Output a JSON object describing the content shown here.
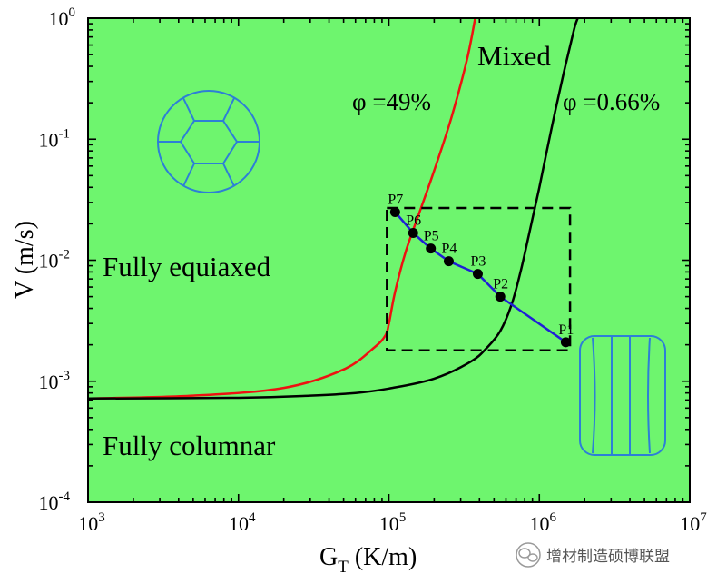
{
  "chart_data": {
    "type": "area",
    "xlabel_main": "G",
    "xlabel_sub": "T",
    "xlabel_unit": " (K/m)",
    "ylabel": "V (m/s)",
    "x_scale": "log",
    "y_scale": "log",
    "xlim": [
      1000,
      10000000
    ],
    "ylim": [
      0.0001,
      1
    ],
    "x_ticks": [
      {
        "value": 1000,
        "base": "10",
        "exp": "3"
      },
      {
        "value": 10000,
        "base": "10",
        "exp": "4"
      },
      {
        "value": 100000,
        "base": "10",
        "exp": "5"
      },
      {
        "value": 1000000,
        "base": "10",
        "exp": "6"
      },
      {
        "value": 10000000,
        "base": "10",
        "exp": "7"
      }
    ],
    "y_ticks": [
      {
        "value": 0.0001,
        "base": "10",
        "exp": "-4"
      },
      {
        "value": 0.001,
        "base": "10",
        "exp": "-3"
      },
      {
        "value": 0.01,
        "base": "10",
        "exp": "-2"
      },
      {
        "value": 0.1,
        "base": "10",
        "exp": "-1"
      },
      {
        "value": 1,
        "base": "10",
        "exp": "0"
      }
    ],
    "regions": [
      {
        "label": "Fully equiaxed",
        "color": "#ffcccc"
      },
      {
        "label": "Mixed",
        "color": "#c896fa"
      },
      {
        "label": "Fully columnar",
        "color": "#6ef56e"
      }
    ],
    "boundaries": [
      {
        "label": "φ =49%",
        "color": "#ee1111",
        "points": [
          [
            1000,
            0.00072
          ],
          [
            5000,
            0.00076
          ],
          [
            20000,
            0.00088
          ],
          [
            50000,
            0.00125
          ],
          [
            80000,
            0.0019
          ],
          [
            95000,
            0.0024
          ],
          [
            100000,
            0.003
          ],
          [
            110000,
            0.0055
          ],
          [
            130000,
            0.012
          ],
          [
            160000,
            0.025
          ],
          [
            200000,
            0.055
          ],
          [
            260000,
            0.15
          ],
          [
            330000,
            0.45
          ],
          [
            375000,
            1.0
          ]
        ]
      },
      {
        "label": "φ =0.66%",
        "color": "#000000",
        "points": [
          [
            1000,
            0.00072
          ],
          [
            10000,
            0.00073
          ],
          [
            30000,
            0.00076
          ],
          [
            60000,
            0.0008
          ],
          [
            100000,
            0.00087
          ],
          [
            200000,
            0.00105
          ],
          [
            350000,
            0.00145
          ],
          [
            450000,
            0.0019
          ],
          [
            550000,
            0.0026
          ],
          [
            650000,
            0.0042
          ],
          [
            750000,
            0.008
          ],
          [
            850000,
            0.016
          ],
          [
            1000000,
            0.04
          ],
          [
            1200000,
            0.12
          ],
          [
            1450000,
            0.35
          ],
          [
            1700000,
            0.8
          ],
          [
            1800000,
            1.0
          ]
        ]
      }
    ],
    "series": [
      {
        "name": "",
        "color": "#1f1fd6",
        "points": [
          {
            "label": "P1",
            "x": 1500000,
            "y": 0.0021
          },
          {
            "label": "P2",
            "x": 550000,
            "y": 0.005
          },
          {
            "label": "P3",
            "x": 390000,
            "y": 0.0077
          },
          {
            "label": "P4",
            "x": 250000,
            "y": 0.0098
          },
          {
            "label": "P5",
            "x": 190000,
            "y": 0.0125
          },
          {
            "label": "P6",
            "x": 145000,
            "y": 0.0168
          },
          {
            "label": "P7",
            "x": 110000,
            "y": 0.025
          }
        ]
      }
    ],
    "dashed_box": {
      "x": [
        97000,
        1600000
      ],
      "y": [
        0.0018,
        0.027
      ]
    },
    "grid": false,
    "legend": "none"
  },
  "watermark": "增材制造硕博联盟",
  "icons": {
    "equiaxed": "equiaxed-grain-icon",
    "columnar": "columnar-grain-icon",
    "watermark": "wechat-logo-icon"
  }
}
